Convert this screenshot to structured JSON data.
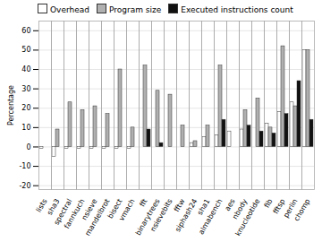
{
  "chart_data": {
    "type": "bar",
    "categories": [
      "lists",
      "sha3",
      "spectral",
      "fannkuch",
      "nsieve",
      "mandelbrot",
      "bisect",
      "vmach",
      "fft",
      "binarytrees",
      "nsievebits",
      "fftw",
      "siphash24",
      "sha1",
      "almabench",
      "aes",
      "nbody",
      "knucleotide",
      "fib",
      "fftsp",
      "perlin",
      "chomp"
    ],
    "series": [
      {
        "name": "Overhead",
        "color": "#ffffff",
        "values": [
          -1,
          -5,
          -1,
          -1,
          -1,
          -1,
          -1,
          -1,
          0,
          0,
          0,
          0,
          2,
          5,
          6,
          8,
          9,
          0,
          12,
          18,
          23,
          50
        ]
      },
      {
        "name": "Program size",
        "color": "#b0b0b0",
        "values": [
          0,
          9,
          23,
          19,
          21,
          17,
          40,
          10,
          42,
          29,
          27,
          11,
          3,
          11,
          42,
          0,
          19,
          25,
          10,
          52,
          21,
          50
        ]
      },
      {
        "name": "Executed instructions count",
        "color": "#111111",
        "values": [
          0,
          0,
          0,
          0,
          0,
          0,
          0,
          0,
          9,
          2,
          0,
          0,
          0,
          0,
          14,
          0,
          11,
          8,
          7,
          17,
          34,
          14
        ]
      }
    ],
    "ylabel": "Percentage",
    "ylim": [
      -22,
      65
    ],
    "yticks": [
      -20,
      -10,
      0,
      10,
      20,
      30,
      40,
      50,
      60
    ],
    "grid": true,
    "legend": "upper left"
  }
}
